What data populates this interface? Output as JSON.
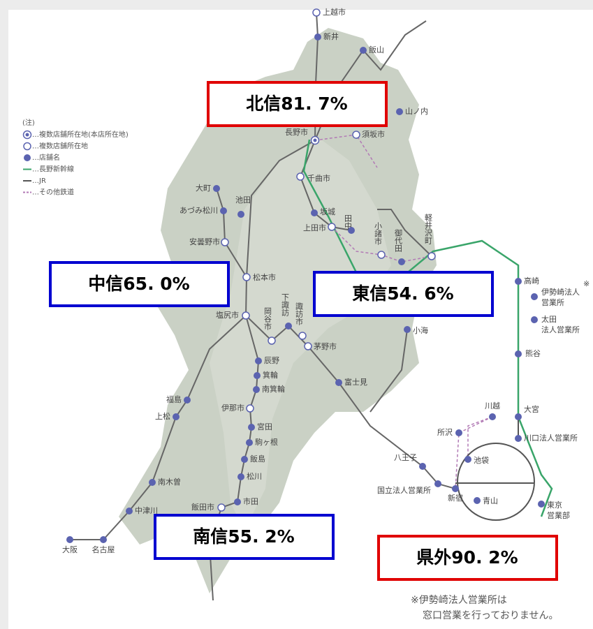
{
  "regions": [
    {
      "label": "北信81. 7%",
      "color": "#e00000"
    },
    {
      "label": "中信65. 0%",
      "color": "#0000d0"
    },
    {
      "label": "東信54. 6%",
      "color": "#0000d0"
    },
    {
      "label": "南信55. 2%",
      "color": "#0000d0"
    },
    {
      "label": "県外90. 2%",
      "color": "#e00000"
    }
  ],
  "legend": {
    "note": "(注)",
    "items": [
      "…複数店舗所在地(本店所在地)",
      "…複数店舗所在地",
      "…店舗名",
      "…長野新幹線",
      "…JR",
      "…その他鉄道"
    ]
  },
  "stations": [
    {
      "lines": [
        "上越市"
      ],
      "marker": "open"
    },
    {
      "lines": [
        "新井"
      ],
      "marker": "filled"
    },
    {
      "lines": [
        "飯山"
      ],
      "marker": "filled"
    },
    {
      "lines": [
        "山ノ内"
      ],
      "marker": "filled"
    },
    {
      "lines": [
        "須坂市"
      ],
      "marker": "open"
    },
    {
      "lines": [
        "長野市"
      ],
      "marker": "double"
    },
    {
      "lines": [
        "千曲市"
      ],
      "marker": "open"
    },
    {
      "lines": [
        "坂城"
      ],
      "marker": "filled"
    },
    {
      "lines": [
        "上田市"
      ],
      "marker": "open"
    },
    {
      "lines": [
        "田中"
      ],
      "marker": "filled"
    },
    {
      "lines": [
        "小諸市"
      ],
      "marker": "open"
    },
    {
      "lines": [
        "御代田"
      ],
      "marker": "filled"
    },
    {
      "lines": [
        "軽井沢町"
      ],
      "marker": "open"
    },
    {
      "lines": [
        "大町"
      ],
      "marker": "filled"
    },
    {
      "lines": [
        "あづみ松川"
      ],
      "marker": "filled"
    },
    {
      "lines": [
        "池田"
      ],
      "marker": "filled"
    },
    {
      "lines": [
        "安曇野市"
      ],
      "marker": "open"
    },
    {
      "lines": [
        "松本市"
      ],
      "marker": "open"
    },
    {
      "lines": [
        "塩尻市"
      ],
      "marker": "open"
    },
    {
      "lines": [
        "岡谷市"
      ],
      "marker": "open"
    },
    {
      "lines": [
        "下諏訪"
      ],
      "marker": "filled"
    },
    {
      "lines": [
        "諏訪市"
      ],
      "marker": "open"
    },
    {
      "lines": [
        "茅野市"
      ],
      "marker": "open"
    },
    {
      "lines": [
        "小海"
      ],
      "marker": "filled"
    },
    {
      "lines": [
        "辰野"
      ],
      "marker": "filled"
    },
    {
      "lines": [
        "箕輪"
      ],
      "marker": "filled"
    },
    {
      "lines": [
        "南箕輪"
      ],
      "marker": "filled"
    },
    {
      "lines": [
        "伊那市"
      ],
      "marker": "open"
    },
    {
      "lines": [
        "宮田"
      ],
      "marker": "filled"
    },
    {
      "lines": [
        "駒ヶ根"
      ],
      "marker": "filled"
    },
    {
      "lines": [
        "飯島"
      ],
      "marker": "filled"
    },
    {
      "lines": [
        "松川"
      ],
      "marker": "filled"
    },
    {
      "lines": [
        "市田"
      ],
      "marker": "filled"
    },
    {
      "lines": [
        "飯田市"
      ],
      "marker": "open"
    },
    {
      "lines": [
        "福島"
      ],
      "marker": "filled"
    },
    {
      "lines": [
        "上松"
      ],
      "marker": "filled"
    },
    {
      "lines": [
        "南木曽"
      ],
      "marker": "filled"
    },
    {
      "lines": [
        "中津川"
      ],
      "marker": "filled"
    },
    {
      "lines": [
        "名古屋"
      ],
      "marker": "filled"
    },
    {
      "lines": [
        "大阪"
      ],
      "marker": "filled"
    },
    {
      "lines": [
        "富士見"
      ],
      "marker": "filled"
    },
    {
      "lines": [
        "高崎"
      ],
      "marker": "filled"
    },
    {
      "lines": [
        "伊勢崎法人",
        "営業所"
      ],
      "marker": "filled"
    },
    {
      "lines": [
        "太田",
        "法人営業所"
      ],
      "marker": "filled"
    },
    {
      "lines": [
        "熊谷"
      ],
      "marker": "filled"
    },
    {
      "lines": [
        "大宮"
      ],
      "marker": "filled"
    },
    {
      "lines": [
        "川越"
      ],
      "marker": "filled"
    },
    {
      "lines": [
        "所沢"
      ],
      "marker": "filled"
    },
    {
      "lines": [
        "川口法人営業所"
      ],
      "marker": "filled"
    },
    {
      "lines": [
        "池袋"
      ],
      "marker": "filled"
    },
    {
      "lines": [
        "八王子"
      ],
      "marker": "filled"
    },
    {
      "lines": [
        "国立法人営業所"
      ],
      "marker": "filled"
    },
    {
      "lines": [
        "新宿"
      ],
      "marker": "filled"
    },
    {
      "lines": [
        "青山"
      ],
      "marker": "filled"
    },
    {
      "lines": [
        "東京",
        "営業部"
      ],
      "marker": "filled"
    }
  ],
  "asterisk": "※",
  "footnote": [
    "※伊勢崎法人営業所は",
    "窓口営業を行っておりません。"
  ]
}
